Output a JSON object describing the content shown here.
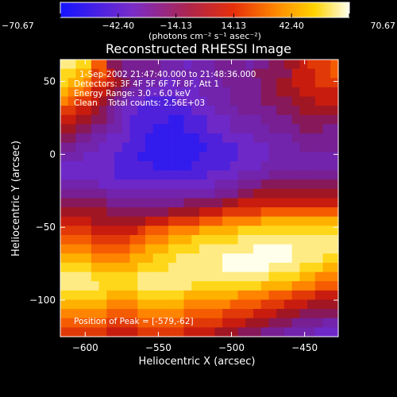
{
  "chart_data": {
    "type": "heatmap",
    "title": "Reconstructed RHESSI Image",
    "xlabel": "Heliocentric X (arcsec)",
    "ylabel": "Heliocentric Y (arcsec)",
    "xlim": [
      -617,
      -427
    ],
    "ylim": [
      -125,
      65
    ],
    "x_ticks": [
      -600,
      -550,
      -500,
      -450
    ],
    "y_ticks": [
      -100,
      -50,
      0,
      50
    ],
    "colorbar": {
      "range": [
        -70.67,
        70.67
      ],
      "ticks": [
        "-70.67",
        "-42.40",
        "-14.13",
        "14.13",
        "42.40",
        "70.67"
      ],
      "unit_label": "(photons cm⁻² s⁻¹ asec⁻²)"
    },
    "annotations": [
      "1-Sep-2002 21:47:40.000 to 21:48:36.000",
      "Detectors: 3F 4F 5F 6F 7F 8F, Att 1",
      "Energy Range: 3.0 - 6.0 keV",
      "Clean    Total counts: 2.56E+03",
      "Position of Peak = [-579,-62]"
    ],
    "peak": [
      -579,
      -62
    ],
    "z_rows_top_to_bottom": [
      "eeddaa66555554443444555545566778999a",
      "ddcc9a86555554444444555556666688899a",
      "dccb99876544433443444555556677888999",
      "cbba88765443333333444455556677788888",
      "ba998765433222233334445555666677788",
      "99887654332222222333444555556667777",
      "8877665432222211222333444455556666",
      "77665544322211112223334444455556665",
      "6655443332211111112223333444445555",
      "55444333222111111112222333344445555",
      "44433332221111111122222333344444444",
      "33333332222211111222223333444444444",
      "33333332222222222223333444455555555",
      "44444333333333333333444555666666666",
      "55555544444444444444555667777777777",
      "66666655555555556666677888888888888",
      "77777766666666777788899999aaaaaaaaa",
      "888877777778889999aaabbbbbccccccccc",
      "99998888889aaabbbbcccccdddddddddddd",
      "aaaa99999aabbbcccddddddeeeeeeeeeeee",
      "bbbbaaaaabbcccddddeeeeeeefffffeeeee",
      "ccccbbbbbcccdddeeeeeefffffffffeeeed",
      "ddddccccccddddeeeeeeeffffffeeeedddc",
      "eeeeddddddeeeeeeeeeeeeeeeeeddddccb",
      "eeeeedddddeeeeeeedddddddddccccbbbaa",
      "ddddddccccddddddcccccccbbbbaaa99988",
      "ccccccbbbbccccccbbbbbbaaaa999888777",
      "bbbbbbaaaabbbbbbaaaaa9999888777666",
      "aaaaaa9999aaaaaa9999988877766655554",
      "9999998888999999888877766655544443"
    ]
  }
}
